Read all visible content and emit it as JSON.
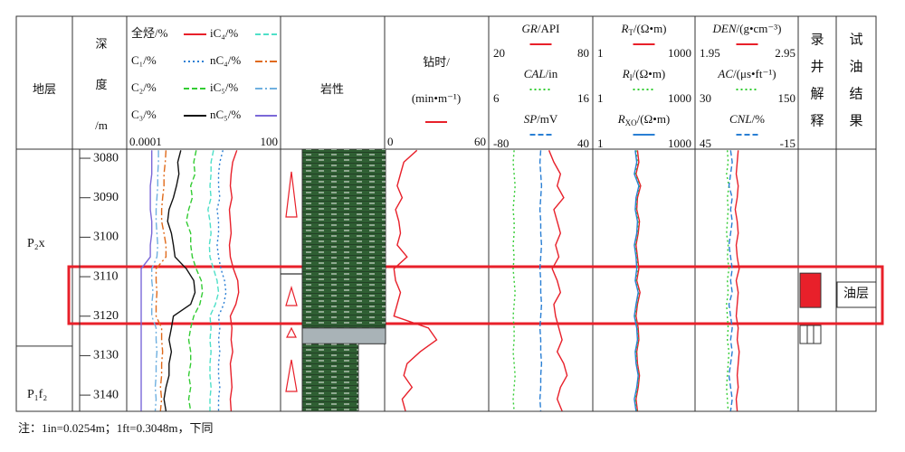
{
  "header": {
    "formation": "地层",
    "lithology": "岩性",
    "interpretation": [
      "录",
      "井",
      "解",
      "释"
    ],
    "test": [
      "试",
      "油",
      "结",
      "果"
    ]
  },
  "depth": {
    "label_lines": [
      "深",
      "度",
      "/m"
    ],
    "ylim": [
      3077.7,
      3144.1
    ],
    "ticks": [
      3080,
      3090,
      3100,
      3110,
      3120,
      3130,
      3140
    ]
  },
  "formations": [
    {
      "name": "P₂x",
      "bottom": 3127.6
    },
    {
      "name": "P₁f₂"
    }
  ],
  "lithology": [
    {
      "top": 3077.7,
      "bottom": 3123,
      "fill": "#2f5f33"
    },
    {
      "top": 3123,
      "bottom": 3127,
      "fill": "#a9b3b7"
    },
    {
      "top": 3127,
      "bottom": 3144.1,
      "fill": "#2f5f33",
      "narrow": true
    }
  ],
  "log_interpretation": {
    "top": 3109.1,
    "bottom": 3117.8,
    "color": "#e8202a"
  },
  "test_result": "油层",
  "samples": [
    3078,
    3081,
    3084,
    3087,
    3090,
    3093,
    3096,
    3099,
    3102,
    3105,
    3108,
    3111,
    3114,
    3117,
    3120,
    3123,
    3126,
    3129,
    3132,
    3135,
    3138,
    3141,
    3144
  ],
  "gas": {
    "scale": [
      0.0001,
      100
    ],
    "log": true,
    "curves": [
      {
        "name": "全烃/%",
        "color": "#e8202a",
        "dash": "solid",
        "values": [
          2.2,
          1.5,
          1.3,
          1.2,
          1.4,
          1.1,
          1.2,
          1.3,
          1.1,
          1.2,
          1.6,
          2.4,
          2.6,
          2.0,
          1.2,
          1.4,
          1.3,
          1.5,
          1.2,
          1.3,
          1.4,
          1.2,
          1.3
        ]
      },
      {
        "name": "C₁/%",
        "color": "#2a7fd4",
        "dash": "dotted",
        "values": [
          0.6,
          0.45,
          0.4,
          0.4,
          0.45,
          0.35,
          0.4,
          0.4,
          0.35,
          0.4,
          0.5,
          0.7,
          0.8,
          0.65,
          0.4,
          0.45,
          0.4,
          0.45,
          0.4,
          0.4,
          0.45,
          0.4,
          0.4
        ]
      },
      {
        "name": "C₂/%",
        "color": "#33cc33",
        "dash": "dashed",
        "values": [
          0.05,
          0.04,
          0.045,
          0.03,
          0.035,
          0.025,
          0.02,
          0.03,
          0.03,
          0.035,
          0.05,
          0.08,
          0.09,
          0.07,
          0.04,
          0.03,
          0.025,
          0.03,
          0.03,
          0.025,
          0.03,
          0.025,
          0.03
        ]
      },
      {
        "name": "C₃/%",
        "color": "#111111",
        "dash": "solid",
        "values": [
          0.012,
          0.009,
          0.01,
          0.008,
          0.006,
          0.004,
          0.0035,
          0.005,
          0.006,
          0.007,
          0.02,
          0.04,
          0.045,
          0.03,
          0.006,
          0.005,
          0.004,
          0.005,
          0.004,
          0.004,
          0.003,
          0.0025,
          0.003
        ]
      },
      {
        "name": "iC₄/%",
        "color": "#4fe0c8",
        "dash": "dashed",
        "values": [
          0.25,
          0.2,
          0.2,
          0.18,
          0.2,
          0.15,
          0.18,
          0.2,
          0.17,
          0.18,
          0.25,
          0.35,
          0.4,
          0.3,
          0.18,
          0.2,
          0.18,
          0.2,
          0.18,
          0.18,
          0.2,
          0.18,
          0.18
        ]
      },
      {
        "name": "nC₄/%",
        "color": "#e06a1a",
        "dash": "dashdot",
        "values": [
          0.003,
          0.0028,
          0.0025,
          0.0025,
          0.0022,
          0.002,
          0.002,
          0.0025,
          0.003,
          0.003,
          0.0012,
          0.0012,
          0.0013,
          0.0012,
          0.0012,
          0.002,
          0.002,
          0.0022,
          0.002,
          0.002,
          0.0018,
          0.002,
          0.0018
        ]
      },
      {
        "name": "iC₅/%",
        "color": "#6fb0e0",
        "dash": "dashdot",
        "values": [
          0.0015,
          0.0015,
          0.0014,
          0.0014,
          0.0013,
          0.0012,
          0.0012,
          0.0013,
          0.0014,
          0.0013,
          0.0008,
          0.0008,
          0.0009,
          0.0008,
          0.0008,
          0.0012,
          0.0012,
          0.0013,
          0.0012,
          0.0012,
          0.0011,
          0.0012,
          0.0011
        ]
      },
      {
        "name": "nC₅/%",
        "color": "#7b68d8",
        "dash": "solid",
        "values": [
          0.0008,
          0.0008,
          0.0008,
          0.0007,
          0.0007,
          0.0007,
          0.0008,
          0.0008,
          0.0007,
          0.0007,
          0.0003,
          0.0003,
          0.0003,
          0.0003,
          0.0003,
          0.0003,
          0.0003,
          0.0003,
          0.0003,
          0.0003,
          0.0003,
          0.0003,
          0.0003
        ]
      }
    ]
  },
  "drill": {
    "title_lines": [
      "钻时/",
      "(min•m⁻¹)"
    ],
    "scale": [
      0,
      60
    ],
    "color": "#e8202a",
    "values": [
      18,
      10,
      8,
      6,
      9,
      5,
      7,
      8,
      6,
      12,
      4,
      5,
      8,
      6,
      4,
      25,
      30,
      20,
      12,
      10,
      15,
      9,
      11
    ]
  },
  "logs": [
    {
      "curves": [
        {
          "name": "GR",
          "unit": "/API",
          "italic": true,
          "range": [
            20,
            80
          ],
          "log": false,
          "color": "#e8202a",
          "dash": "solid",
          "values": [
            55,
            58,
            62,
            60,
            64,
            58,
            60,
            62,
            59,
            61,
            57,
            60,
            62,
            58,
            59,
            61,
            63,
            60,
            64,
            66,
            62,
            60,
            63
          ]
        },
        {
          "name": "CAL",
          "unit": "/in",
          "italic": true,
          "range": [
            6,
            16
          ],
          "log": false,
          "color": "#33cc33",
          "dash": "dotted",
          "values": [
            8.3,
            8.2,
            8.3,
            8.4,
            8.3,
            8.2,
            8.3,
            8.3,
            8.2,
            8.3,
            8.2,
            8.3,
            8.4,
            8.3,
            8.2,
            8.3,
            8.3,
            8.2,
            8.3,
            8.4,
            8.3,
            8.2,
            8.3
          ]
        },
        {
          "name": "SP",
          "unit": "/mV",
          "italic": true,
          "range": [
            -80,
            40
          ],
          "log": false,
          "color": "#2a7fd4",
          "dash": "dashed",
          "values": [
            -20,
            -21,
            -20,
            -19,
            -20,
            -21,
            -20,
            -20,
            -19,
            -20,
            -21,
            -20,
            -20,
            -19,
            -20,
            -21,
            -20,
            -20,
            -19,
            -20,
            -20,
            -21,
            -20
          ]
        }
      ]
    },
    {
      "curves": [
        {
          "name": "R",
          "sub": "T",
          "unit": "/(Ω•m)",
          "italic": true,
          "range": [
            1,
            1000
          ],
          "log": true,
          "color": "#e8202a",
          "dash": "solid",
          "values": [
            20,
            22,
            18,
            25,
            20,
            19,
            23,
            21,
            18,
            20,
            22,
            19,
            24,
            20,
            18,
            21,
            22,
            19,
            20,
            23,
            21,
            18,
            20
          ]
        },
        {
          "name": "R",
          "sub": "I",
          "unit": "/(Ω•m)",
          "italic": true,
          "range": [
            1,
            1000
          ],
          "log": true,
          "color": "#33cc33",
          "dash": "dotted",
          "values": [
            18,
            20,
            17,
            23,
            19,
            18,
            21,
            20,
            17,
            19,
            20,
            18,
            22,
            19,
            17,
            20,
            21,
            18,
            19,
            22,
            20,
            17,
            19
          ]
        },
        {
          "name": "R",
          "sub": "XO",
          "unit": "/(Ω•m)",
          "italic": true,
          "range": [
            1,
            1000
          ],
          "log": true,
          "color": "#2a7fd4",
          "dash": "solid",
          "values": [
            17,
            19,
            16,
            22,
            18,
            17,
            20,
            19,
            16,
            18,
            19,
            17,
            21,
            18,
            16,
            19,
            20,
            17,
            18,
            21,
            19,
            16,
            18
          ]
        }
      ]
    },
    {
      "curves": [
        {
          "name": "DEN",
          "unit": "/(g•cm⁻³)",
          "italic": true,
          "range": [
            1.95,
            2.95
          ],
          "log": false,
          "color": "#e8202a",
          "dash": "solid",
          "values": [
            2.36,
            2.35,
            2.34,
            2.36,
            2.35,
            2.33,
            2.35,
            2.36,
            2.34,
            2.35,
            2.37,
            2.34,
            2.36,
            2.35,
            2.34,
            2.36,
            2.35,
            2.37,
            2.36,
            2.35,
            2.36,
            2.34,
            2.35
          ]
        },
        {
          "name": "AC",
          "unit": "/(μs•ft⁻¹)",
          "italic": true,
          "range": [
            30,
            150
          ],
          "log": false,
          "color": "#33cc33",
          "dash": "dotted",
          "values": [
            66,
            67,
            65,
            68,
            66,
            67,
            66,
            65,
            67,
            66,
            68,
            66,
            67,
            65,
            66,
            67,
            66,
            68,
            67,
            66,
            65,
            66,
            67
          ]
        },
        {
          "name": "CNL",
          "unit": "/%",
          "italic": true,
          "range": [
            45,
            -15
          ],
          "log": false,
          "color": "#2a7fd4",
          "dash": "dashed",
          "values": [
            25,
            24,
            25,
            26,
            24,
            25,
            24,
            25,
            26,
            25,
            24,
            25,
            24,
            26,
            25,
            24,
            25,
            24,
            25,
            26,
            25,
            24,
            25
          ]
        }
      ]
    }
  ],
  "footnote": "注：1in=0.0254m；1ft=0.3048m，下同"
}
